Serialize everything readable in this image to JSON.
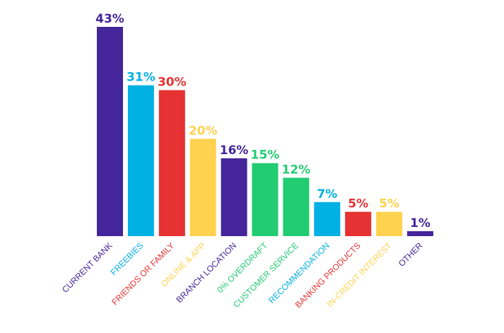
{
  "chart_data": {
    "type": "bar",
    "title": "",
    "xlabel": "",
    "ylabel": "",
    "ylim": [
      0,
      43
    ],
    "grid": false,
    "legend": "none",
    "categories": [
      "CURRENT BANK",
      "FREEBIES",
      "FRIENDS OR FAMILY",
      "ONLINE & APP",
      "BRANCH LOCATION",
      "0% OVERDRAFT",
      "CUSTOMER SERVICE",
      "RECOMMENDATION",
      "BANKING PRODUCTS",
      "IN-CREDIT INTEREST",
      "OTHER"
    ],
    "values": [
      43,
      31,
      30,
      20,
      16,
      15,
      12,
      7,
      5,
      5,
      1
    ],
    "labels": [
      "43%",
      "31%",
      "30%",
      "20%",
      "16%",
      "15%",
      "12%",
      "7%",
      "5%",
      "5%",
      "1%"
    ],
    "colors": [
      "#44259a",
      "#00b0e3",
      "#e63232",
      "#fed24f",
      "#44259a",
      "#22cc73",
      "#22cc73",
      "#00b0e3",
      "#e63232",
      "#fed24f",
      "#44259a"
    ]
  }
}
